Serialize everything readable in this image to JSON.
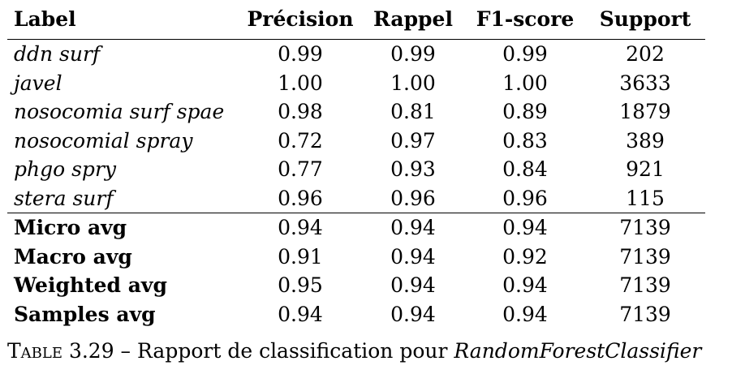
{
  "table": {
    "headers": [
      "Label",
      "Précision",
      "Rappel",
      "F1-score",
      "Support"
    ],
    "rows": [
      {
        "label": "ddn surf",
        "precision": "0.99",
        "recall": "0.99",
        "f1": "0.99",
        "support": "202"
      },
      {
        "label": "javel",
        "precision": "1.00",
        "recall": "1.00",
        "f1": "1.00",
        "support": "3633"
      },
      {
        "label": "nosocomia surf spae",
        "precision": "0.98",
        "recall": "0.81",
        "f1": "0.89",
        "support": "1879"
      },
      {
        "label": "nosocomial spray",
        "precision": "0.72",
        "recall": "0.97",
        "f1": "0.83",
        "support": "389"
      },
      {
        "label": "phgo spry",
        "precision": "0.77",
        "recall": "0.93",
        "f1": "0.84",
        "support": "921"
      },
      {
        "label": "stera surf",
        "precision": "0.96",
        "recall": "0.96",
        "f1": "0.96",
        "support": "115"
      }
    ],
    "averages": [
      {
        "label": "Micro avg",
        "precision": "0.94",
        "recall": "0.94",
        "f1": "0.94",
        "support": "7139"
      },
      {
        "label": "Macro avg",
        "precision": "0.91",
        "recall": "0.94",
        "f1": "0.92",
        "support": "7139"
      },
      {
        "label": "Weighted avg",
        "precision": "0.95",
        "recall": "0.94",
        "f1": "0.94",
        "support": "7139"
      },
      {
        "label": "Samples avg",
        "precision": "0.94",
        "recall": "0.94",
        "f1": "0.94",
        "support": "7139"
      }
    ]
  },
  "caption": {
    "prefix": "Table 3.29",
    "dash": " – ",
    "text": "Rapport de classification pour ",
    "classifier": "RandomForestClassifier"
  }
}
